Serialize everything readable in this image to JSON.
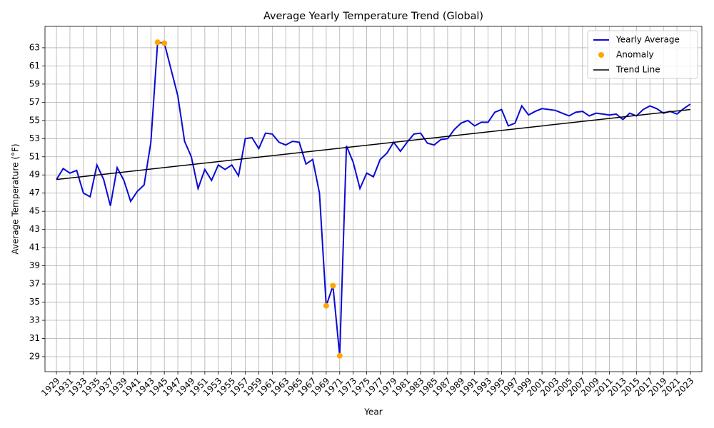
{
  "chart_data": {
    "type": "line",
    "title": "Average Yearly Temperature Trend (Global)",
    "xlabel": "Year",
    "ylabel": "Average Temperature (°F)",
    "x": [
      1929,
      1930,
      1931,
      1932,
      1933,
      1934,
      1935,
      1936,
      1937,
      1938,
      1939,
      1940,
      1941,
      1942,
      1943,
      1944,
      1945,
      1946,
      1947,
      1948,
      1949,
      1950,
      1951,
      1952,
      1953,
      1954,
      1955,
      1956,
      1957,
      1958,
      1959,
      1960,
      1961,
      1962,
      1963,
      1964,
      1965,
      1966,
      1967,
      1968,
      1969,
      1970,
      1971,
      1972,
      1973,
      1974,
      1975,
      1976,
      1977,
      1978,
      1979,
      1980,
      1981,
      1982,
      1983,
      1984,
      1985,
      1986,
      1987,
      1988,
      1989,
      1990,
      1991,
      1992,
      1993,
      1994,
      1995,
      1996,
      1997,
      1998,
      1999,
      2000,
      2001,
      2002,
      2003,
      2004,
      2005,
      2006,
      2007,
      2008,
      2009,
      2010,
      2011,
      2012,
      2013,
      2014,
      2015,
      2016,
      2017,
      2018,
      2019,
      2020,
      2021,
      2022,
      2023
    ],
    "series": [
      {
        "name": "Yearly Average",
        "type": "line",
        "color": "#0a0ad4",
        "values": [
          48.5,
          49.7,
          49.2,
          49.5,
          47.0,
          46.6,
          50.1,
          48.5,
          45.6,
          49.8,
          48.4,
          46.1,
          47.2,
          47.9,
          52.6,
          63.6,
          63.5,
          60.6,
          57.7,
          52.7,
          51.0,
          47.5,
          49.6,
          48.4,
          50.1,
          49.6,
          50.1,
          48.9,
          53.0,
          53.1,
          51.9,
          53.6,
          53.5,
          52.6,
          52.3,
          52.7,
          52.6,
          50.2,
          50.7,
          47.0,
          34.6,
          36.8,
          29.1,
          52.2,
          50.4,
          47.5,
          49.2,
          48.8,
          50.7,
          51.4,
          52.6,
          51.6,
          52.6,
          53.5,
          53.6,
          52.5,
          52.3,
          52.9,
          53.0,
          54.0,
          54.7,
          55.0,
          54.4,
          54.8,
          54.8,
          55.9,
          56.2,
          54.4,
          54.7,
          56.6,
          55.6,
          56.0,
          56.3,
          56.2,
          56.1,
          55.8,
          55.5,
          55.9,
          56.0,
          55.5,
          55.8,
          55.7,
          55.6,
          55.7,
          55.1,
          55.8,
          55.5,
          56.2,
          56.6,
          56.3,
          55.8,
          56.0,
          55.7,
          56.3,
          56.8
        ]
      },
      {
        "name": "Anomaly",
        "type": "scatter",
        "color": "#ffa500",
        "x": [
          1944,
          1945,
          1969,
          1970,
          1971
        ],
        "values": [
          63.6,
          63.5,
          34.6,
          36.8,
          29.1
        ]
      },
      {
        "name": "Trend Line",
        "type": "line",
        "color": "#000000",
        "x": [
          1929,
          2023
        ],
        "values": [
          48.5,
          56.2
        ]
      }
    ],
    "xlim": [
      1927.3,
      2024.7
    ],
    "ylim": [
      27.35,
      65.35
    ],
    "xticks": [
      1929,
      1931,
      1933,
      1935,
      1937,
      1939,
      1941,
      1943,
      1945,
      1947,
      1949,
      1951,
      1953,
      1955,
      1957,
      1959,
      1961,
      1963,
      1965,
      1967,
      1969,
      1971,
      1973,
      1975,
      1977,
      1979,
      1981,
      1983,
      1985,
      1987,
      1989,
      1991,
      1993,
      1995,
      1997,
      1999,
      2001,
      2003,
      2005,
      2007,
      2009,
      2011,
      2013,
      2015,
      2017,
      2019,
      2021,
      2023
    ],
    "yticks": [
      29,
      31,
      33,
      35,
      37,
      39,
      41,
      43,
      45,
      47,
      49,
      51,
      53,
      55,
      57,
      59,
      61,
      63
    ],
    "grid": true,
    "legend": "upper right"
  }
}
